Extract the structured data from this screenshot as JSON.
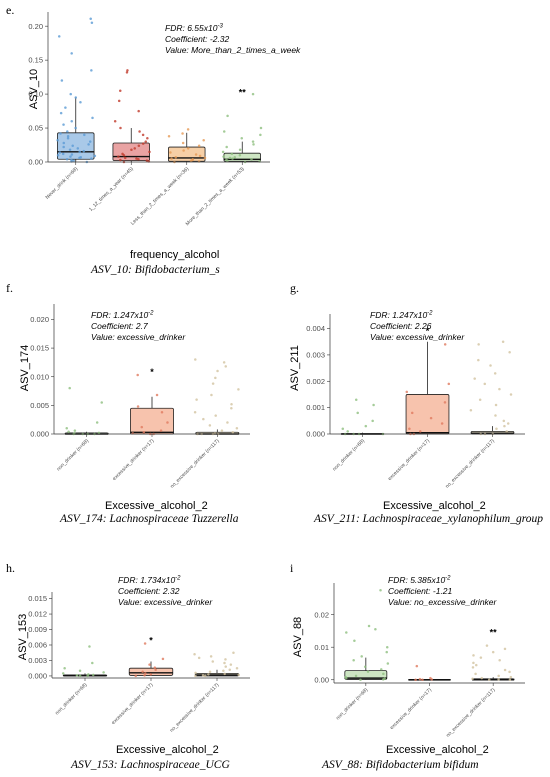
{
  "chart_data": [
    {
      "id": "e",
      "panel_label": "e.",
      "type": "box",
      "caption": "ASV_10: Bifidobacterium_s",
      "ylabel": "ASV_10",
      "xlabel": "frequency_alcohol",
      "ylim": [
        0,
        0.215
      ],
      "yticks": [
        0.0,
        0.05,
        0.1,
        0.15,
        0.2
      ],
      "ytick_labels": [
        "0.00",
        "0.05",
        "0.10",
        "0.15",
        "0.20"
      ],
      "annotation": {
        "fdr_prefix": "FDR: 6.55x10",
        "fdr_exp": "-3",
        "coefficient": "Coefficient:  -2.32",
        "value": "Value: More_than_2_times_a_week"
      },
      "significance": {
        "label": "**",
        "group": 3,
        "y": 0.102
      },
      "groups": [
        {
          "label": "Never_drink (n=68)",
          "color": "#5b9bd5",
          "fill": "#a9c9e8",
          "q1": 0.004,
          "median": 0.015,
          "q3": 0.043,
          "whisker_low": 0.0,
          "whisker_high": 0.095,
          "points": [
            0.211,
            0.205,
            0.185,
            0.16,
            0.135,
            0.12,
            0.1,
            0.095,
            0.088,
            0.08,
            0.072,
            0.065,
            0.06,
            0.055,
            0.05,
            0.045,
            0.042,
            0.04,
            0.038,
            0.035,
            0.032,
            0.03,
            0.028,
            0.026,
            0.024,
            0.022,
            0.02,
            0.018,
            0.016,
            0.015,
            0.014,
            0.012,
            0.011,
            0.01,
            0.009,
            0.008,
            0.007,
            0.006,
            0.005,
            0.004,
            0.003,
            0.002,
            0.001,
            0.0
          ]
        },
        {
          "label": "1_12_times_a_year (n=45)",
          "color": "#c0392b",
          "fill": "#e9a3a3",
          "q1": 0.002,
          "median": 0.008,
          "q3": 0.028,
          "whisker_low": 0.0,
          "whisker_high": 0.05,
          "points": [
            0.135,
            0.132,
            0.105,
            0.09,
            0.075,
            0.06,
            0.05,
            0.045,
            0.04,
            0.035,
            0.03,
            0.027,
            0.024,
            0.02,
            0.018,
            0.015,
            0.012,
            0.01,
            0.008,
            0.006,
            0.005,
            0.004,
            0.003,
            0.002,
            0.001,
            0.0
          ]
        },
        {
          "label": "Less_than_2_times_a_week (n=36)",
          "color": "#e69a55",
          "fill": "#f6cfa6",
          "q1": 0.001,
          "median": 0.006,
          "q3": 0.022,
          "whisker_low": 0.0,
          "whisker_high": 0.043,
          "points": [
            0.048,
            0.042,
            0.038,
            0.032,
            0.028,
            0.024,
            0.02,
            0.017,
            0.014,
            0.011,
            0.009,
            0.007,
            0.006,
            0.005,
            0.004,
            0.003,
            0.002,
            0.001,
            0.0
          ]
        },
        {
          "label": "More_than_2_times_a_week (n=53)",
          "color": "#8fbf7f",
          "fill": "#cde5c3",
          "q1": 0.001,
          "median": 0.004,
          "q3": 0.013,
          "whisker_low": 0.0,
          "whisker_high": 0.03,
          "points": [
            0.1,
            0.068,
            0.05,
            0.045,
            0.04,
            0.035,
            0.03,
            0.026,
            0.022,
            0.018,
            0.015,
            0.012,
            0.01,
            0.008,
            0.007,
            0.006,
            0.005,
            0.004,
            0.003,
            0.002,
            0.001,
            0.0
          ]
        }
      ]
    },
    {
      "id": "f",
      "panel_label": "f.",
      "type": "box",
      "caption": "ASV_174: Lachnospiraceae Tuzzerella",
      "ylabel": "ASV_174",
      "xlabel": "Excessive_alcohol_2",
      "ylim": [
        0,
        0.022
      ],
      "yticks": [
        0.0,
        0.005,
        0.01,
        0.015,
        0.02
      ],
      "ytick_labels": [
        "0.000",
        "0.005",
        "0.010",
        "0.015",
        "0.020"
      ],
      "annotation": {
        "fdr_prefix": "FDR: 1.247x10",
        "fdr_exp": "-2",
        "coefficient": "Coefficient:  2.7",
        "value": "Value: excessive_drinker"
      },
      "significance": {
        "label": "*",
        "group": 1,
        "y": 0.0108
      },
      "groups": [
        {
          "label": "non_drinker (n=68)",
          "color": "#8fbf7f",
          "fill": "#cde5c3",
          "q1": 0.0,
          "median": 0.0,
          "q3": 0.0002,
          "whisker_low": 0.0,
          "whisker_high": 0.0004,
          "points": [
            0.008,
            0.0055,
            0.002,
            0.001,
            0.0006,
            0.0004,
            0.0002,
            0.0001,
            0.0,
            0.0,
            0.0,
            0.0
          ]
        },
        {
          "label": "excessive_drinker (n=17)",
          "color": "#e07a5f",
          "fill": "#f7c3ad",
          "q1": 0.0,
          "median": 0.0003,
          "q3": 0.0045,
          "whisker_low": 0.0,
          "whisker_high": 0.0065,
          "points": [
            0.0103,
            0.0068,
            0.0048,
            0.0038,
            0.002,
            0.0012,
            0.0006,
            0.0003,
            0.0001,
            0.0,
            0.0
          ]
        },
        {
          "label": "no_excessive_drinker (n=117)",
          "color": "#d2c3a0",
          "fill": "#ebe2cd",
          "q1": 0.0,
          "median": 0.0,
          "q3": 0.0003,
          "whisker_low": 0.0,
          "whisker_high": 0.0008,
          "points": [
            0.013,
            0.0125,
            0.0118,
            0.011,
            0.0098,
            0.0088,
            0.0078,
            0.0068,
            0.006,
            0.0052,
            0.0045,
            0.0038,
            0.0032,
            0.0026,
            0.002,
            0.0015,
            0.001,
            0.0006,
            0.0003,
            0.0001,
            0.0,
            0.0,
            0.0,
            0.0
          ]
        }
      ]
    },
    {
      "id": "g",
      "panel_label": "g.",
      "type": "box",
      "caption": "ASV_211: Lachnospiraceae_xylanophilum_group",
      "ylabel": "ASV_211",
      "xlabel": "Excessive_alcohol_2",
      "ylim": [
        0,
        0.0044
      ],
      "yticks": [
        0.0,
        0.001,
        0.002,
        0.003,
        0.004
      ],
      "ytick_labels": [
        "0.000",
        "0.001",
        "0.002",
        "0.003",
        "0.004"
      ],
      "annotation": {
        "fdr_prefix": "FDR: 1.247x10",
        "fdr_exp": "-2",
        "coefficient": "Coefficient:  2.26",
        "value": "Value: excessive_drinker"
      },
      "significance": {
        "label": "*",
        "group": 1,
        "y": 0.0039
      },
      "groups": [
        {
          "label": "non_drinker (n=68)",
          "color": "#8fbf7f",
          "fill": "#cde5c3",
          "q1": 0.0,
          "median": 0.0,
          "q3": 2e-05,
          "whisker_low": 0.0,
          "whisker_high": 5e-05,
          "points": [
            0.0013,
            0.0011,
            0.0008,
            0.0005,
            0.0003,
            0.0002,
            0.0001,
            0.0,
            0.0,
            0.0,
            0.0
          ]
        },
        {
          "label": "excessive_drinker (n=17)",
          "color": "#e07a5f",
          "fill": "#f7c3ad",
          "q1": 0.0,
          "median": 5e-05,
          "q3": 0.0015,
          "whisker_low": 0.0,
          "whisker_high": 0.0035,
          "points": [
            0.0034,
            0.0019,
            0.0016,
            0.0012,
            0.0008,
            0.0006,
            0.0004,
            0.0002,
            0.0001,
            0.0,
            0.0
          ]
        },
        {
          "label": "no_excessive_drinker (n=117)",
          "color": "#d2c3a0",
          "fill": "#ebe2cd",
          "q1": 0.0,
          "median": 3e-05,
          "q3": 0.0001,
          "whisker_low": 0.0,
          "whisker_high": 0.0003,
          "points": [
            0.0035,
            0.0034,
            0.0031,
            0.0028,
            0.0026,
            0.0023,
            0.0021,
            0.0019,
            0.0017,
            0.0015,
            0.0013,
            0.0011,
            0.0009,
            0.0007,
            0.0005,
            0.0004,
            0.0003,
            0.0002,
            0.0001,
            0.0,
            0.0,
            0.0
          ]
        }
      ]
    },
    {
      "id": "h",
      "panel_label": "h.",
      "type": "box",
      "caption": "ASV_153: Lachnospiraceae_UCG",
      "ylabel": "ASV_153",
      "xlabel": "Excessive_alcohol_2",
      "ylim": [
        -0.0004,
        0.0155
      ],
      "yticks": [
        0.0,
        0.003,
        0.006,
        0.009,
        0.012,
        0.015
      ],
      "ytick_labels": [
        "0.000",
        "0.003",
        "0.006",
        "0.009",
        "0.012",
        "0.015"
      ],
      "annotation": {
        "fdr_prefix": "FDR: 1.734x10",
        "fdr_exp": "-2",
        "coefficient": "Coefficient:  2.32",
        "value": "Value: excessive_drinker"
      },
      "significance": {
        "label": "*",
        "group": 1,
        "y": 0.0069
      },
      "groups": [
        {
          "label": "non_drinker (n=68)",
          "color": "#8fbf7f",
          "fill": "#cde5c3",
          "q1": 0.0,
          "median": 5e-05,
          "q3": 0.0002,
          "whisker_low": 0.0,
          "whisker_high": 0.0005,
          "points": [
            0.0057,
            0.0025,
            0.0015,
            0.001,
            0.0007,
            0.0005,
            0.0003,
            0.0002,
            0.0001,
            0.0,
            0.0
          ]
        },
        {
          "label": "excessive_drinker (n=17)",
          "color": "#e07a5f",
          "fill": "#f7c3ad",
          "q1": 0.0001,
          "median": 0.0006,
          "q3": 0.0015,
          "whisker_low": 0.0,
          "whisker_high": 0.0028,
          "points": [
            0.0063,
            0.0033,
            0.0022,
            0.0016,
            0.0012,
            0.0008,
            0.0005,
            0.0003,
            0.0001,
            0.0
          ]
        },
        {
          "label": "no_excessive_drinker (n=117)",
          "color": "#d2c3a0",
          "fill": "#ebe2cd",
          "q1": 0.0,
          "median": 0.0002,
          "q3": 0.0005,
          "whisker_low": 0.0,
          "whisker_high": 0.0012,
          "points": [
            0.0045,
            0.0042,
            0.0038,
            0.0035,
            0.0032,
            0.0028,
            0.0025,
            0.0022,
            0.0018,
            0.0015,
            0.0012,
            0.001,
            0.0008,
            0.0006,
            0.0004,
            0.0003,
            0.0002,
            0.0001,
            0.0,
            0.0
          ]
        }
      ]
    },
    {
      "id": "i",
      "panel_label": "i",
      "type": "box",
      "caption": "ASV_88: Bifidobacterium bifidum",
      "ylabel": "ASV_88",
      "xlabel": "Excessive_alcohol_2",
      "ylim": [
        -0.001,
        0.0285
      ],
      "yticks": [
        0.0,
        0.01,
        0.02
      ],
      "ytick_labels": [
        "0.00",
        "0.01",
        "0.02"
      ],
      "annotation": {
        "fdr_prefix": "FDR: 5.385x10",
        "fdr_exp": "-2",
        "coefficient": "Coefficient:  -1.21",
        "value": "Value: no_excessive_drinker"
      },
      "significance": {
        "label": "**",
        "group": 2,
        "y": 0.0145
      },
      "groups": [
        {
          "label": "non_drinker (n=68)",
          "color": "#8fbf7f",
          "fill": "#cde5c3",
          "q1": 0.0001,
          "median": 0.0005,
          "q3": 0.0028,
          "whisker_low": 0.0,
          "whisker_high": 0.0068,
          "points": [
            0.0275,
            0.0165,
            0.0155,
            0.0145,
            0.012,
            0.01,
            0.0085,
            0.0072,
            0.006,
            0.005,
            0.004,
            0.0032,
            0.0025,
            0.0018,
            0.0012,
            0.0008,
            0.0005,
            0.0003,
            0.0001,
            0.0
          ]
        },
        {
          "label": "excessive_drinker (n=17)",
          "color": "#e07a5f",
          "fill": "#f7c3ad",
          "q1": 0.0,
          "median": 0.0,
          "q3": 0.0001,
          "whisker_low": 0.0,
          "whisker_high": 0.0002,
          "points": [
            0.0042,
            0.0005,
            0.0002,
            0.0001,
            0.0,
            0.0
          ]
        },
        {
          "label": "no_excessive_drinker (n=117)",
          "color": "#d2c3a0",
          "fill": "#ebe2cd",
          "q1": 0.0,
          "median": 0.0,
          "q3": 0.0003,
          "whisker_low": 0.0,
          "whisker_high": 0.0008,
          "points": [
            0.0105,
            0.0095,
            0.0085,
            0.0075,
            0.0068,
            0.006,
            0.0052,
            0.0045,
            0.0038,
            0.003,
            0.0024,
            0.0018,
            0.0012,
            0.0008,
            0.0005,
            0.0003,
            0.0001,
            0.0,
            0.0
          ]
        }
      ]
    }
  ]
}
